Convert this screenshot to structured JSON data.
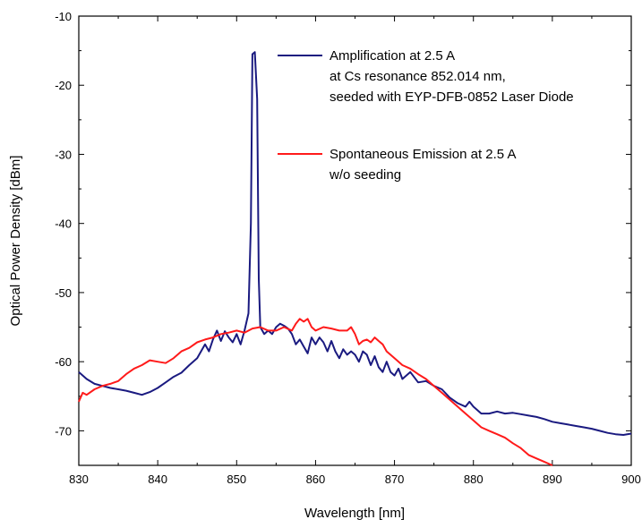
{
  "chart_data": {
    "type": "line",
    "xlabel": "Wavelength [nm]",
    "ylabel": "Optical Power Density [dBm]",
    "xlim": [
      830,
      900
    ],
    "ylim": [
      -75,
      -10
    ],
    "x_ticks": [
      830,
      840,
      850,
      860,
      870,
      880,
      890,
      900
    ],
    "y_ticks": [
      -10,
      -20,
      -30,
      -40,
      -50,
      -60,
      -70
    ],
    "grid": false,
    "legend_position": "top-right",
    "series": [
      {
        "name_lines": [
          "Amplification at 2.5 A",
          "at Cs resonance 852.014 nm,",
          "seeded with EYP-DFB-0852 Laser Diode"
        ],
        "color": "#1a1a80",
        "points": [
          [
            830,
            -61.5
          ],
          [
            831,
            -62.5
          ],
          [
            832,
            -63.2
          ],
          [
            833,
            -63.5
          ],
          [
            834,
            -63.8
          ],
          [
            835,
            -64.0
          ],
          [
            836,
            -64.2
          ],
          [
            837,
            -64.5
          ],
          [
            838,
            -64.8
          ],
          [
            839,
            -64.4
          ],
          [
            840,
            -63.8
          ],
          [
            841,
            -63.0
          ],
          [
            842,
            -62.2
          ],
          [
            843,
            -61.6
          ],
          [
            844,
            -60.5
          ],
          [
            845,
            -59.5
          ],
          [
            846,
            -57.5
          ],
          [
            846.5,
            -58.5
          ],
          [
            847,
            -56.8
          ],
          [
            847.5,
            -55.5
          ],
          [
            848,
            -57.0
          ],
          [
            848.5,
            -55.6
          ],
          [
            849,
            -56.5
          ],
          [
            849.5,
            -57.2
          ],
          [
            850,
            -56.0
          ],
          [
            850.5,
            -57.5
          ],
          [
            851,
            -55.5
          ],
          [
            851.5,
            -53.0
          ],
          [
            851.8,
            -40.0
          ],
          [
            852.0,
            -15.5
          ],
          [
            852.3,
            -15.2
          ],
          [
            852.6,
            -22.0
          ],
          [
            852.8,
            -48.0
          ],
          [
            853.0,
            -55.0
          ],
          [
            853.5,
            -56.0
          ],
          [
            854,
            -55.5
          ],
          [
            854.5,
            -56.0
          ],
          [
            855,
            -55.0
          ],
          [
            855.5,
            -54.5
          ],
          [
            856,
            -54.8
          ],
          [
            856.5,
            -55.2
          ],
          [
            857,
            -56.0
          ],
          [
            857.5,
            -57.5
          ],
          [
            858,
            -56.8
          ],
          [
            858.5,
            -57.8
          ],
          [
            859,
            -58.8
          ],
          [
            859.5,
            -56.5
          ],
          [
            860,
            -57.5
          ],
          [
            860.5,
            -56.5
          ],
          [
            861,
            -57.2
          ],
          [
            861.5,
            -58.5
          ],
          [
            862,
            -57.0
          ],
          [
            862.5,
            -58.5
          ],
          [
            863,
            -59.5
          ],
          [
            863.5,
            -58.2
          ],
          [
            864,
            -59.0
          ],
          [
            864.5,
            -58.5
          ],
          [
            865,
            -59.0
          ],
          [
            865.5,
            -60.0
          ],
          [
            866,
            -58.5
          ],
          [
            866.5,
            -59.0
          ],
          [
            867,
            -60.5
          ],
          [
            867.5,
            -59.2
          ],
          [
            868,
            -60.8
          ],
          [
            868.5,
            -61.5
          ],
          [
            869,
            -60.0
          ],
          [
            869.5,
            -61.5
          ],
          [
            870,
            -62.0
          ],
          [
            870.5,
            -61.0
          ],
          [
            871,
            -62.5
          ],
          [
            872,
            -61.5
          ],
          [
            873,
            -63.0
          ],
          [
            874,
            -62.8
          ],
          [
            875,
            -63.5
          ],
          [
            876,
            -64.0
          ],
          [
            877,
            -65.2
          ],
          [
            878,
            -66.0
          ],
          [
            879,
            -66.5
          ],
          [
            879.5,
            -65.8
          ],
          [
            880,
            -66.5
          ],
          [
            881,
            -67.5
          ],
          [
            882,
            -67.5
          ],
          [
            883,
            -67.2
          ],
          [
            884,
            -67.5
          ],
          [
            885,
            -67.4
          ],
          [
            886,
            -67.6
          ],
          [
            887,
            -67.8
          ],
          [
            888,
            -68.0
          ],
          [
            889,
            -68.3
          ],
          [
            890,
            -68.7
          ],
          [
            891,
            -68.9
          ],
          [
            892,
            -69.1
          ],
          [
            893,
            -69.3
          ],
          [
            894,
            -69.5
          ],
          [
            895,
            -69.7
          ],
          [
            896,
            -70.0
          ],
          [
            897,
            -70.3
          ],
          [
            898,
            -70.5
          ],
          [
            899,
            -70.6
          ],
          [
            900,
            -70.4
          ]
        ]
      },
      {
        "name_lines": [
          "Spontaneous Emission at 2.5 A",
          " w/o seeding"
        ],
        "color": "#ff1a1a",
        "points": [
          [
            830,
            -65.8
          ],
          [
            830.5,
            -64.5
          ],
          [
            831,
            -64.8
          ],
          [
            832,
            -64.0
          ],
          [
            833,
            -63.5
          ],
          [
            834,
            -63.2
          ],
          [
            835,
            -62.8
          ],
          [
            836,
            -61.8
          ],
          [
            837,
            -61.0
          ],
          [
            838,
            -60.5
          ],
          [
            839,
            -59.8
          ],
          [
            840,
            -60.0
          ],
          [
            841,
            -60.2
          ],
          [
            842,
            -59.5
          ],
          [
            843,
            -58.5
          ],
          [
            844,
            -58.0
          ],
          [
            845,
            -57.2
          ],
          [
            846,
            -56.8
          ],
          [
            847,
            -56.5
          ],
          [
            848,
            -56.0
          ],
          [
            849,
            -55.8
          ],
          [
            850,
            -55.5
          ],
          [
            851,
            -55.8
          ],
          [
            852,
            -55.2
          ],
          [
            853,
            -55.0
          ],
          [
            854,
            -55.5
          ],
          [
            855,
            -55.5
          ],
          [
            856,
            -55.0
          ],
          [
            857,
            -55.5
          ],
          [
            857.5,
            -54.5
          ],
          [
            858,
            -53.8
          ],
          [
            858.5,
            -54.2
          ],
          [
            859,
            -53.8
          ],
          [
            859.5,
            -55.0
          ],
          [
            860,
            -55.5
          ],
          [
            861,
            -55.0
          ],
          [
            862,
            -55.2
          ],
          [
            863,
            -55.5
          ],
          [
            864,
            -55.5
          ],
          [
            864.5,
            -55.0
          ],
          [
            865,
            -56.0
          ],
          [
            865.5,
            -57.5
          ],
          [
            866,
            -57.0
          ],
          [
            866.5,
            -56.8
          ],
          [
            867,
            -57.2
          ],
          [
            867.5,
            -56.5
          ],
          [
            868,
            -57.0
          ],
          [
            868.5,
            -57.5
          ],
          [
            869,
            -58.5
          ],
          [
            870,
            -59.5
          ],
          [
            871,
            -60.5
          ],
          [
            872,
            -61.0
          ],
          [
            873,
            -61.8
          ],
          [
            874,
            -62.5
          ],
          [
            875,
            -63.5
          ],
          [
            876,
            -64.5
          ],
          [
            877,
            -65.5
          ],
          [
            878,
            -66.5
          ],
          [
            879,
            -67.5
          ],
          [
            880,
            -68.5
          ],
          [
            881,
            -69.5
          ],
          [
            882,
            -70.0
          ],
          [
            883,
            -70.5
          ],
          [
            884,
            -71.0
          ],
          [
            885,
            -71.8
          ],
          [
            886,
            -72.5
          ],
          [
            887,
            -73.5
          ],
          [
            888,
            -74.0
          ],
          [
            889,
            -74.5
          ],
          [
            890,
            -75.0
          ]
        ]
      }
    ]
  }
}
